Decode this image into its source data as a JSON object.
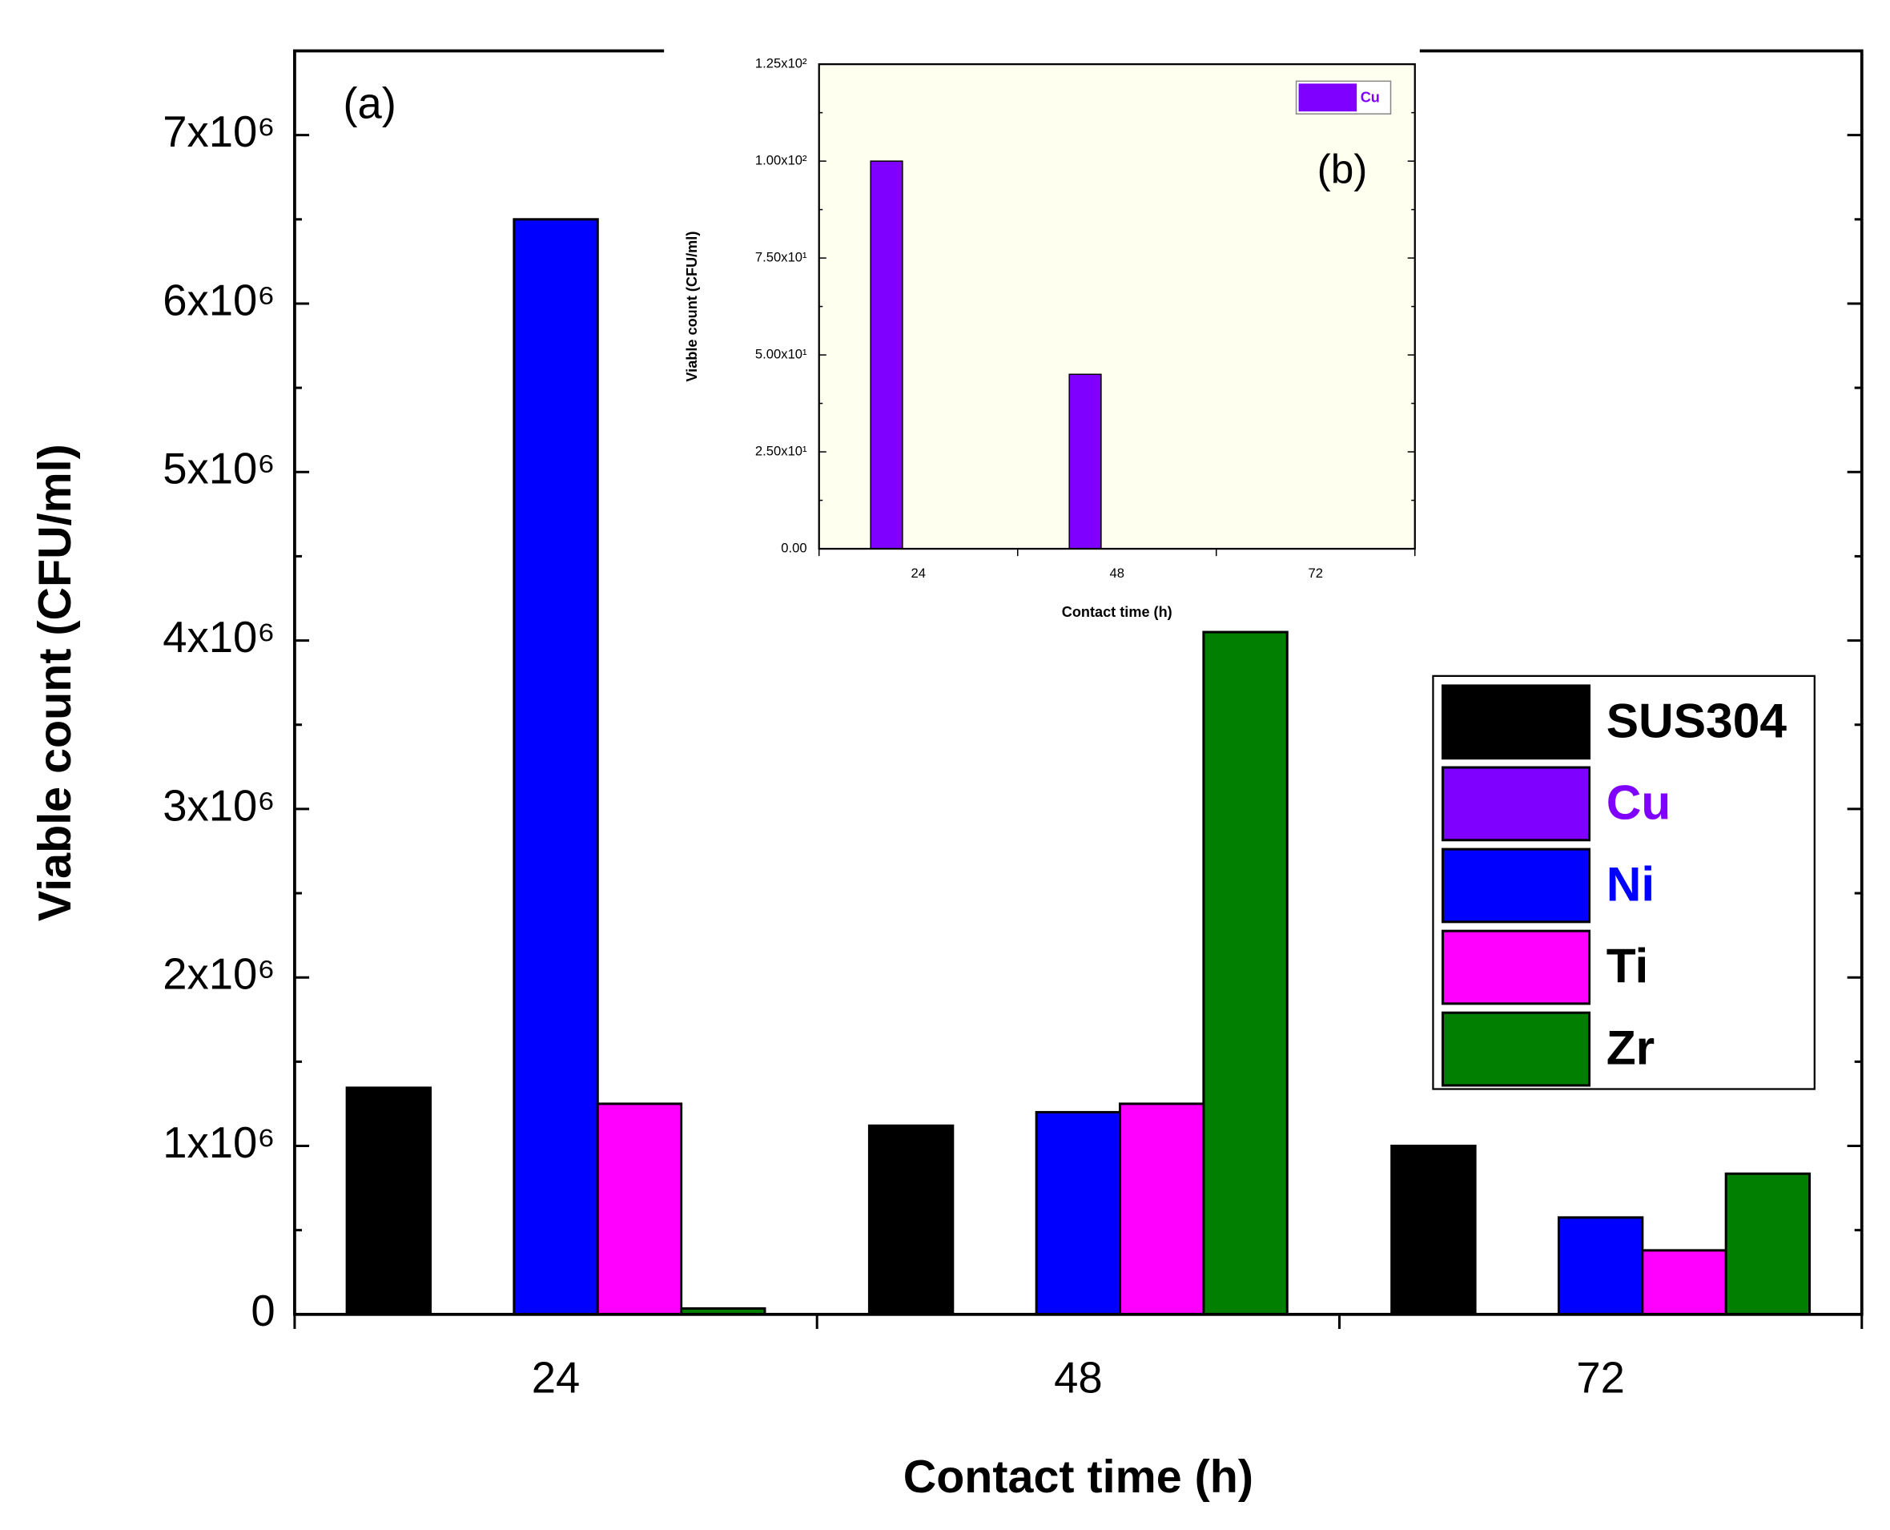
{
  "chart_data": [
    {
      "type": "bar",
      "annotation": "(a)",
      "xlabel": "Contact time (h)",
      "ylabel": "Viable count (CFU/ml)",
      "categories": [
        "24",
        "48",
        "72"
      ],
      "series": [
        {
          "name": "SUS304",
          "color": "#000000",
          "label_color": "#000000",
          "values": [
            1345000,
            1120000,
            1000000
          ]
        },
        {
          "name": "Cu",
          "color": "#7f00ff",
          "label_color": "#7f00ff",
          "values": [
            100,
            45,
            0
          ]
        },
        {
          "name": "Ni",
          "color": "#0000ff",
          "label_color": "#0000ff",
          "values": [
            6500000,
            1200000,
            575000
          ]
        },
        {
          "name": "Ti",
          "color": "#ff00ff",
          "label_color": "#000000",
          "values": [
            1250000,
            1250000,
            380000
          ]
        },
        {
          "name": "Zr",
          "color": "#007f00",
          "label_color": "#000000",
          "values": [
            35000,
            4050000,
            835000
          ]
        }
      ],
      "ylim": [
        0,
        7500000
      ],
      "yticks": [
        0,
        {
          "value": 1000000,
          "label": "1x10⁶"
        },
        {
          "value": 2000000,
          "label": "2x10⁶"
        },
        {
          "value": 3000000,
          "label": "3x10⁶"
        },
        {
          "value": 4000000,
          "label": "4x10⁶"
        },
        {
          "value": 5000000,
          "label": "5x10⁶"
        },
        {
          "value": 6000000,
          "label": "6x10⁶"
        },
        {
          "value": 7000000,
          "label": "7x10⁶"
        }
      ],
      "legend": "right"
    },
    {
      "type": "bar",
      "annotation": "(b)",
      "xlabel": "Contact time (h)",
      "ylabel": "Viable count (CFU/ml)",
      "categories": [
        "24",
        "48",
        "72"
      ],
      "series": [
        {
          "name": "Cu",
          "color": "#7f00ff",
          "label_color": "#7f00ff",
          "values": [
            100,
            45,
            0
          ]
        }
      ],
      "ylim": [
        0,
        125
      ],
      "yticks": [
        {
          "value": 0,
          "label": "0.00"
        },
        {
          "value": 25,
          "label": "2.50x10¹"
        },
        {
          "value": 50,
          "label": "5.00x10¹"
        },
        {
          "value": 75,
          "label": "7.50x10¹"
        },
        {
          "value": 100,
          "label": "1.00x10²"
        },
        {
          "value": 125,
          "label": "1.25x10²"
        }
      ],
      "legend": "upper right"
    }
  ]
}
